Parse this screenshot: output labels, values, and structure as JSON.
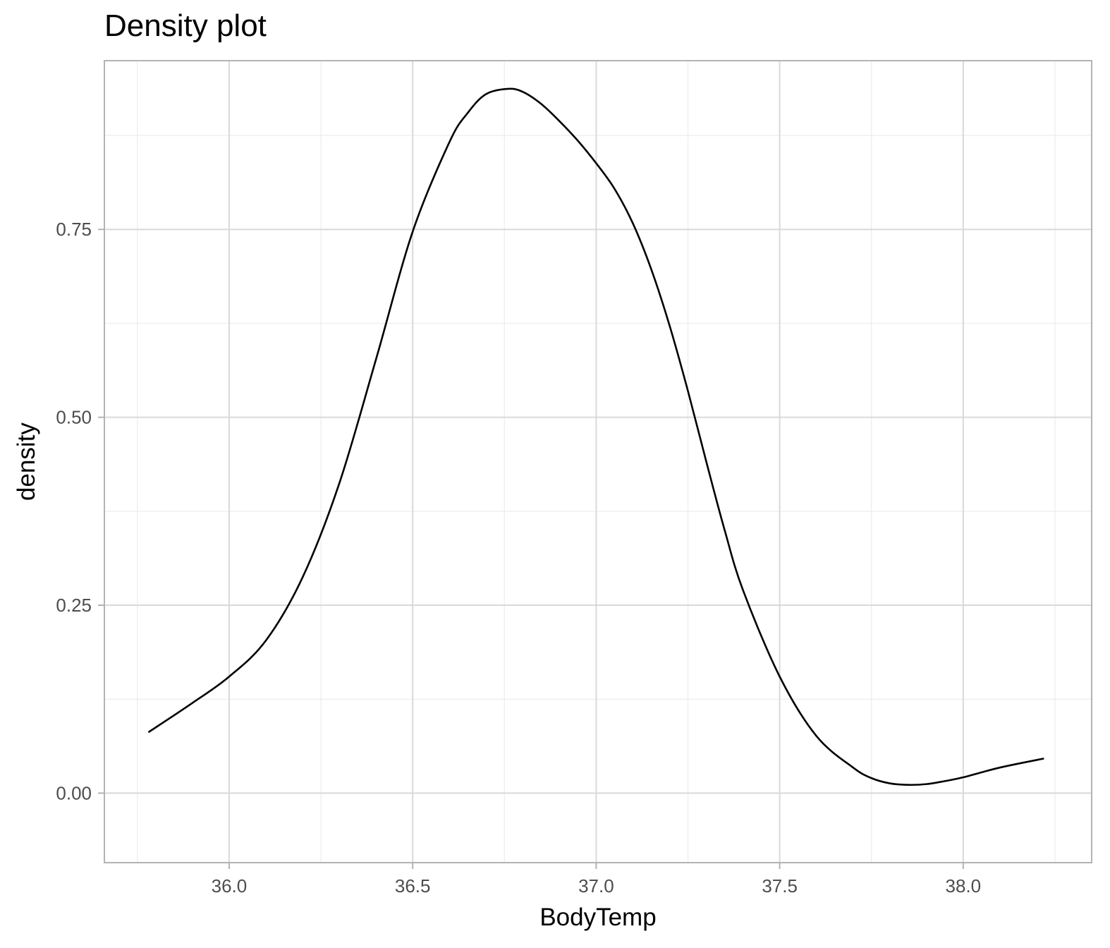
{
  "chart_data": {
    "type": "line",
    "title": "Density plot",
    "xlabel": "BodyTemp",
    "ylabel": "density",
    "xlim": [
      35.66,
      38.35
    ],
    "ylim": [
      -0.0925,
      0.9745
    ],
    "x_ticks": [
      36.0,
      36.5,
      37.0,
      37.5,
      38.0
    ],
    "x_tick_labels": [
      "36.0",
      "36.5",
      "37.0",
      "37.5",
      "38.0"
    ],
    "x_minor_ticks": [
      35.75,
      36.25,
      36.75,
      37.25,
      37.75,
      38.25
    ],
    "y_ticks": [
      0.0,
      0.25,
      0.5,
      0.75
    ],
    "y_tick_labels": [
      "0.00",
      "0.25",
      "0.50",
      "0.75"
    ],
    "y_minor_ticks": [
      0.125,
      0.375,
      0.625,
      0.875
    ],
    "grid": true,
    "legend": "none",
    "colors": {
      "line": "#000000",
      "grid_major": "#d9d9d9",
      "grid_minor": "#ececec",
      "panel_border": "#b3b3b3",
      "tick_text": "#4d4d4d"
    },
    "series": [
      {
        "x": [
          35.78,
          35.9,
          36.0,
          36.1,
          36.2,
          36.3,
          36.4,
          36.5,
          36.6,
          36.65,
          36.7,
          36.76,
          36.8,
          36.85,
          36.9,
          36.95,
          37.0,
          37.05,
          37.1,
          37.15,
          37.2,
          37.25,
          37.3,
          37.35,
          37.4,
          37.5,
          37.6,
          37.7,
          37.75,
          37.8,
          37.85,
          37.9,
          37.95,
          38.0,
          38.1,
          38.22
        ],
        "y": [
          0.081,
          0.12,
          0.155,
          0.203,
          0.287,
          0.412,
          0.577,
          0.747,
          0.866,
          0.905,
          0.93,
          0.937,
          0.933,
          0.917,
          0.894,
          0.868,
          0.838,
          0.804,
          0.758,
          0.697,
          0.622,
          0.535,
          0.441,
          0.35,
          0.27,
          0.155,
          0.076,
          0.034,
          0.02,
          0.013,
          0.011,
          0.012,
          0.016,
          0.021,
          0.034,
          0.046
        ]
      }
    ]
  }
}
